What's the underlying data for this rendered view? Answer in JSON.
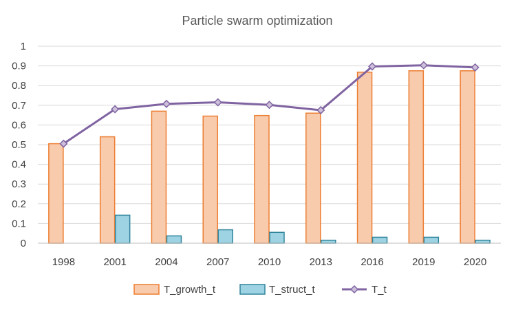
{
  "chart_data": {
    "type": "bar",
    "title": "Particle swarm optimization",
    "xlabel": "",
    "ylabel": "",
    "categories": [
      "1998",
      "2001",
      "2004",
      "2007",
      "2010",
      "2013",
      "2016",
      "2019",
      "2020"
    ],
    "ylim": [
      0,
      1
    ],
    "yticks": [
      0,
      0.1,
      0.2,
      0.3,
      0.4,
      0.5,
      0.6,
      0.7,
      0.8,
      0.9,
      1
    ],
    "ytick_labels": [
      "0",
      "0.1",
      "0.2",
      "0.3",
      "0.4",
      "0.5",
      "0.6",
      "0.7",
      "0.8",
      "0.9",
      "1"
    ],
    "grid": true,
    "legend_position": "bottom",
    "series": [
      {
        "name": "T_growth_t",
        "type": "bar",
        "values": [
          0.505,
          0.54,
          0.67,
          0.645,
          0.648,
          0.66,
          0.868,
          0.875,
          0.875
        ],
        "fill": "#f8cbad",
        "stroke": "#ed7d31"
      },
      {
        "name": "T_struct_t",
        "type": "bar",
        "values": [
          0.0,
          0.142,
          0.037,
          0.068,
          0.055,
          0.015,
          0.03,
          0.03,
          0.015
        ],
        "fill": "#9dd3e3",
        "stroke": "#31859c"
      },
      {
        "name": "T_t",
        "type": "line",
        "marker": "diamond",
        "values": [
          0.505,
          0.68,
          0.707,
          0.715,
          0.702,
          0.675,
          0.897,
          0.903,
          0.892
        ],
        "stroke": "#8064a2",
        "marker_fill": "#ccc0da"
      }
    ]
  }
}
